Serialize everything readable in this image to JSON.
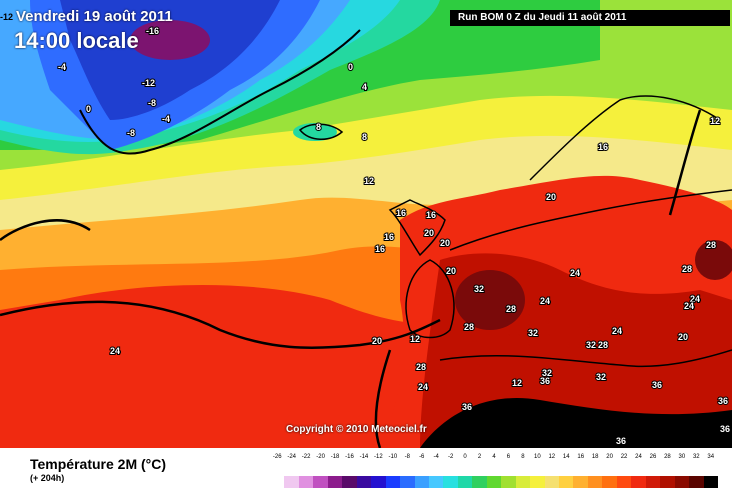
{
  "header": {
    "top_left_number": "-12",
    "date_line": "Vendredi 19 août 2011",
    "time_line": "14:00 locale",
    "run_info": "Run BOM 0 Z du Jeudi 11 août 2011"
  },
  "map": {
    "labels": [
      {
        "text": "-16"
      },
      {
        "text": "-12"
      },
      {
        "text": "-8"
      },
      {
        "text": "-8"
      },
      {
        "text": "-4"
      },
      {
        "text": "0"
      },
      {
        "text": "0"
      },
      {
        "text": "-4"
      },
      {
        "text": "4"
      },
      {
        "text": "8"
      },
      {
        "text": "12"
      },
      {
        "text": "16"
      },
      {
        "text": "16"
      },
      {
        "text": "16"
      },
      {
        "text": "16"
      },
      {
        "text": "16"
      },
      {
        "text": "20"
      },
      {
        "text": "20"
      },
      {
        "text": "20"
      },
      {
        "text": "20"
      },
      {
        "text": "20"
      },
      {
        "text": "20"
      },
      {
        "text": "24"
      },
      {
        "text": "24"
      },
      {
        "text": "24"
      },
      {
        "text": "24"
      },
      {
        "text": "24"
      },
      {
        "text": "24"
      },
      {
        "text": "28"
      },
      {
        "text": "28"
      },
      {
        "text": "28"
      },
      {
        "text": "28"
      },
      {
        "text": "28"
      },
      {
        "text": "28"
      },
      {
        "text": "32"
      },
      {
        "text": "32"
      },
      {
        "text": "32"
      },
      {
        "text": "32"
      },
      {
        "text": "36"
      },
      {
        "text": "36"
      },
      {
        "text": "36"
      },
      {
        "text": "36"
      },
      {
        "text": "36"
      },
      {
        "text": "36"
      },
      {
        "text": "12"
      },
      {
        "text": "12"
      },
      {
        "text": "8"
      },
      {
        "text": "12"
      },
      {
        "text": "24"
      },
      {
        "text": "32"
      }
    ],
    "colors": {
      "deep_blue": "#1f3fd0",
      "blue": "#2f6cff",
      "light_blue": "#46a8ff",
      "cyan": "#27d8e0",
      "teal": "#24d8a0",
      "green": "#2ecc40",
      "light_green": "#9be23a",
      "yellow": "#f5f03c",
      "pale_yellow": "#f5e98a",
      "orange": "#ffb030",
      "dark_orange": "#ff7a10",
      "red": "#f02a10",
      "dark_red": "#c01000",
      "maroon": "#7a0a0a",
      "black": "#000000",
      "purple": "#7c1470"
    }
  },
  "copyright": "Copyright © 2010 Meteociel.fr",
  "legend": {
    "title": "Température 2M (°C)",
    "subtitle": "(+ 204h)",
    "scale_values": [
      "-26",
      "-24",
      "-22",
      "-20",
      "-18",
      "-16",
      "-14",
      "-12",
      "-10",
      "-8",
      "-6",
      "-4",
      "-2",
      "0",
      "2",
      "4",
      "6",
      "8",
      "10",
      "12",
      "14",
      "16",
      "18",
      "20",
      "22",
      "24",
      "26",
      "28",
      "30",
      "32",
      "34"
    ],
    "scale_colors": [
      "#ffffff",
      "#f0c8f0",
      "#e090e0",
      "#c050c0",
      "#8c1c8c",
      "#5a0a6a",
      "#3a0aa0",
      "#2410d0",
      "#1a3cff",
      "#2a6cff",
      "#3aa0ff",
      "#46c8ff",
      "#28e0e0",
      "#20d8a8",
      "#30d060",
      "#60d830",
      "#a0e030",
      "#d8ec3a",
      "#f5f03c",
      "#f5e070",
      "#ffd040",
      "#ffb030",
      "#ff9020",
      "#ff7010",
      "#ff4a10",
      "#f02a10",
      "#d01a08",
      "#b01000",
      "#8a0a00",
      "#5a0500",
      "#000000"
    ]
  }
}
